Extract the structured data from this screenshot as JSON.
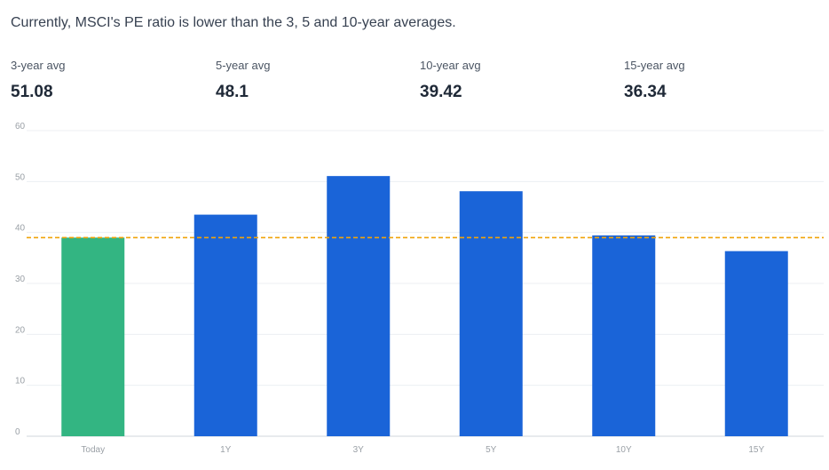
{
  "headline": "Currently, MSCI's PE ratio is lower than the 3, 5 and 10-year averages.",
  "stats": [
    {
      "label": "3-year avg",
      "value": "51.08"
    },
    {
      "label": "5-year avg",
      "value": "48.1"
    },
    {
      "label": "10-year avg",
      "value": "39.42"
    },
    {
      "label": "15-year avg",
      "value": "36.34"
    }
  ],
  "colors": {
    "current_bar": "#33b582",
    "avg_bar": "#1a64d8",
    "reference_line": "#f0a30a",
    "grid": "#eceff3",
    "baseline": "#d1d5db"
  },
  "chart_data": {
    "type": "bar",
    "categories": [
      "Today",
      "1Y",
      "3Y",
      "5Y",
      "10Y",
      "15Y"
    ],
    "values": [
      39.0,
      43.5,
      51.08,
      48.1,
      39.42,
      36.34
    ],
    "ylim": [
      0,
      60
    ],
    "yticks": [
      0,
      10,
      20,
      30,
      40,
      50,
      60
    ],
    "reference_value": 39.0,
    "grid": true,
    "title": "",
    "xlabel": "",
    "ylabel": ""
  }
}
